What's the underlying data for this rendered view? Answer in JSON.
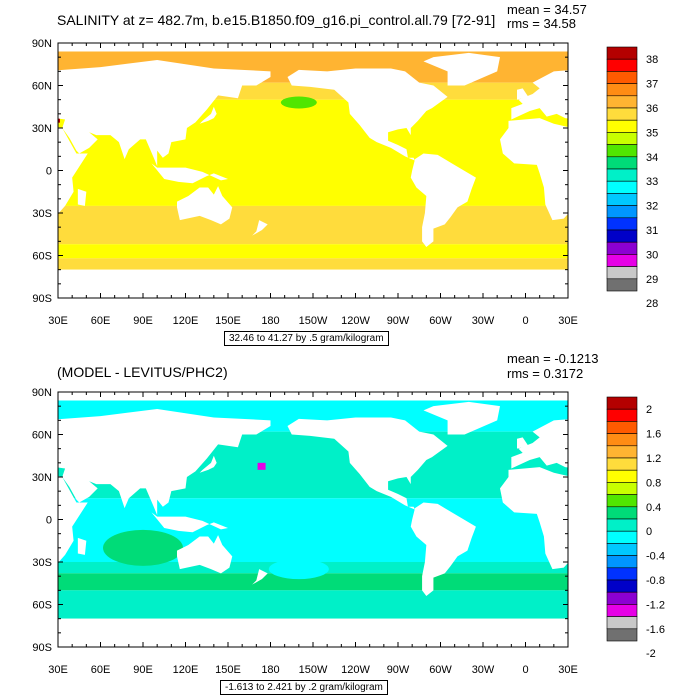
{
  "panels": [
    {
      "title": "SALINITY at z= 482.7m, b.e15.B1850.f09_g16.pi_control.all.79 [72-91]",
      "mean": "mean = 34.57",
      "rms": "rms = 34.58",
      "info": "32.46 to 41.27 by .5 gram/kilogram",
      "colorbar": {
        "labels": [
          "38",
          "37",
          "36",
          "35",
          "34",
          "33",
          "32",
          "31",
          "30",
          "29",
          "28"
        ],
        "colors": [
          "#b40000",
          "#ff0000",
          "#ff5a00",
          "#ff8c14",
          "#ffb432",
          "#ffdc3c",
          "#ffff00",
          "#c8ff00",
          "#50e600",
          "#00dc78",
          "#00f0c8",
          "#00ffff",
          "#00c8ff",
          "#0096ff",
          "#0032ff",
          "#0000c8",
          "#8c00d2",
          "#e600e6",
          "#c8c8c8",
          "#707070"
        ]
      },
      "map": {
        "ocean_base": "#ffff00",
        "land": "#ffffff"
      }
    },
    {
      "title": "(MODEL - LEVITUS/PHC2)",
      "mean": "mean = -0.1213",
      "rms": "rms = 0.3172",
      "info": "-1.613 to 2.421 by .2 gram/kilogram",
      "colorbar": {
        "labels": [
          "2",
          "1.6",
          "1.2",
          "0.8",
          "0.4",
          "0",
          "-0.4",
          "-0.8",
          "-1.2",
          "-1.6",
          "-2"
        ],
        "colors": [
          "#b40000",
          "#ff0000",
          "#ff5a00",
          "#ff8c14",
          "#ffb432",
          "#ffdc3c",
          "#ffff00",
          "#c8ff00",
          "#50e600",
          "#00dc78",
          "#00f0c8",
          "#00ffff",
          "#00c8ff",
          "#0096ff",
          "#0032ff",
          "#0000c8",
          "#8c00d2",
          "#e600e6",
          "#c8c8c8",
          "#707070"
        ]
      },
      "map": {
        "ocean_base": "#00ffff",
        "land": "#ffffff"
      }
    }
  ],
  "axes": {
    "lat_labels": [
      "90N",
      "60N",
      "30N",
      "0",
      "30S",
      "60S",
      "90S"
    ],
    "lon_labels": [
      "30E",
      "60E",
      "90E",
      "120E",
      "150E",
      "180",
      "150W",
      "120W",
      "90W",
      "60W",
      "30W",
      "0",
      "30E"
    ]
  }
}
